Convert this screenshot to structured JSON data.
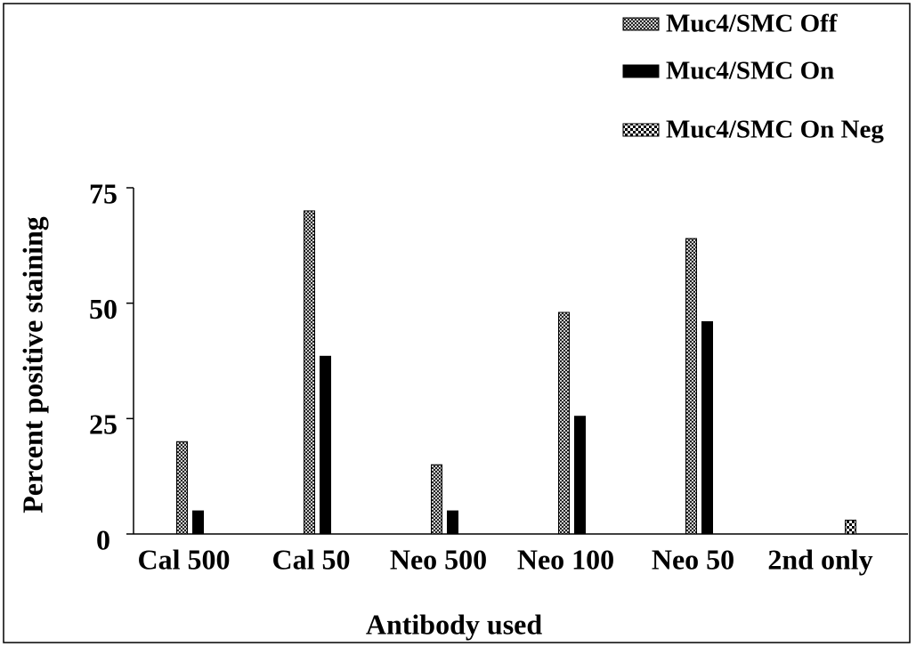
{
  "chart_data": {
    "type": "bar",
    "xlabel": "Antibody used",
    "ylabel": "Percent positive staining",
    "categories": [
      "Cal 500",
      "Cal 50",
      "Neo 500",
      "Neo 100",
      "Neo 50",
      "2nd only"
    ],
    "series": [
      {
        "name": "Muc4/SMC Off",
        "color": "#000000",
        "pattern": "crosshatch",
        "values": [
          20,
          70,
          15,
          48,
          64,
          0
        ]
      },
      {
        "name": "Muc4/SMC On",
        "color": "#000000",
        "pattern": "solid",
        "values": [
          5,
          38.5,
          5,
          25.5,
          46,
          0
        ]
      },
      {
        "name": "Muc4/SMC On Neg",
        "color": "#000000",
        "pattern": "checker",
        "values": [
          0,
          0,
          0,
          0,
          0,
          3
        ]
      }
    ],
    "ylim": [
      0,
      75
    ],
    "yticks": [
      0,
      25,
      50,
      75
    ],
    "grid": false,
    "legend": "top-right"
  }
}
